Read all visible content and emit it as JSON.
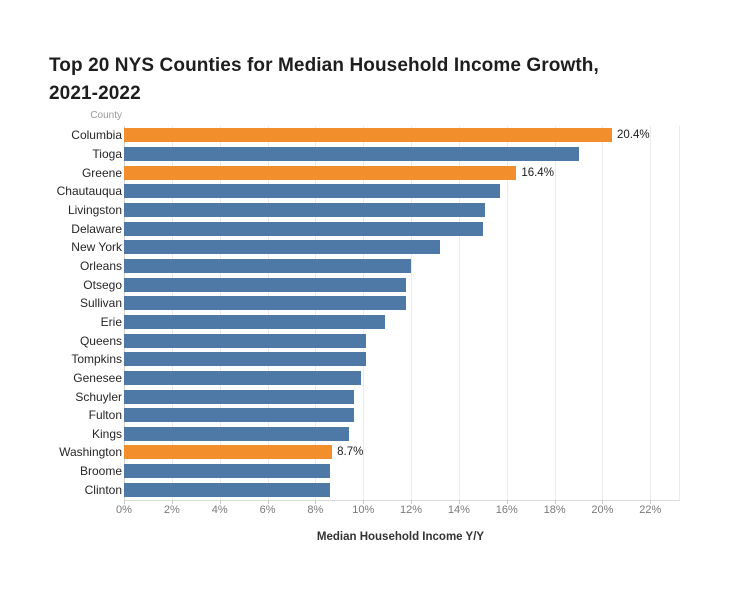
{
  "chart_data": {
    "type": "bar",
    "orientation": "horizontal",
    "title": "Top 20 NYS Counties for Median Household Income Growth, 2021-2022",
    "title_lines": [
      "Top 20 NYS Counties for Median Household Income Growth,",
      "2021-2022"
    ],
    "row_header": "County",
    "xlabel": "Median Household Income Y/Y",
    "ylabel": "County",
    "xlim": [
      0,
      23.2
    ],
    "grid": true,
    "legend": "none",
    "x_ticks": [
      {
        "value": 0,
        "label": "0%"
      },
      {
        "value": 2,
        "label": "2%"
      },
      {
        "value": 4,
        "label": "4%"
      },
      {
        "value": 6,
        "label": "6%"
      },
      {
        "value": 8,
        "label": "8%"
      },
      {
        "value": 10,
        "label": "10%"
      },
      {
        "value": 12,
        "label": "12%"
      },
      {
        "value": 14,
        "label": "14%"
      },
      {
        "value": 16,
        "label": "16%"
      },
      {
        "value": 18,
        "label": "18%"
      },
      {
        "value": 20,
        "label": "20%"
      },
      {
        "value": 22,
        "label": "22%"
      }
    ],
    "points": [
      {
        "county": "Columbia",
        "value": 20.4,
        "highlighted": true,
        "label": "20.4%"
      },
      {
        "county": "Tioga",
        "value": 19.0,
        "highlighted": false,
        "label": null
      },
      {
        "county": "Greene",
        "value": 16.4,
        "highlighted": true,
        "label": "16.4%"
      },
      {
        "county": "Chautauqua",
        "value": 15.7,
        "highlighted": false,
        "label": null
      },
      {
        "county": "Livingston",
        "value": 15.1,
        "highlighted": false,
        "label": null
      },
      {
        "county": "Delaware",
        "value": 15.0,
        "highlighted": false,
        "label": null
      },
      {
        "county": "New York",
        "value": 13.2,
        "highlighted": false,
        "label": null
      },
      {
        "county": "Orleans",
        "value": 12.0,
        "highlighted": false,
        "label": null
      },
      {
        "county": "Otsego",
        "value": 11.8,
        "highlighted": false,
        "label": null
      },
      {
        "county": "Sullivan",
        "value": 11.8,
        "highlighted": false,
        "label": null
      },
      {
        "county": "Erie",
        "value": 10.9,
        "highlighted": false,
        "label": null
      },
      {
        "county": "Queens",
        "value": 10.1,
        "highlighted": false,
        "label": null
      },
      {
        "county": "Tompkins",
        "value": 10.1,
        "highlighted": false,
        "label": null
      },
      {
        "county": "Genesee",
        "value": 9.9,
        "highlighted": false,
        "label": null
      },
      {
        "county": "Schuyler",
        "value": 9.6,
        "highlighted": false,
        "label": null
      },
      {
        "county": "Fulton",
        "value": 9.6,
        "highlighted": false,
        "label": null
      },
      {
        "county": "Kings",
        "value": 9.4,
        "highlighted": false,
        "label": null
      },
      {
        "county": "Washington",
        "value": 8.7,
        "highlighted": true,
        "label": "8.7%"
      },
      {
        "county": "Broome",
        "value": 8.6,
        "highlighted": false,
        "label": null
      },
      {
        "county": "Clinton",
        "value": 8.6,
        "highlighted": false,
        "label": null
      }
    ],
    "colors": {
      "bar_default": "#4e79a7",
      "bar_highlight": "#f28e2b",
      "title_text": "#1e1e1e",
      "county_label_text": "#262626",
      "tick_label_text": "#7a7a7a",
      "column_header_text": "#9a9a9a",
      "value_label_text": "#1c1c1c",
      "gridline": "#ebebeb",
      "axis_line": "#d9d9d9",
      "background": "#ffffff"
    }
  }
}
